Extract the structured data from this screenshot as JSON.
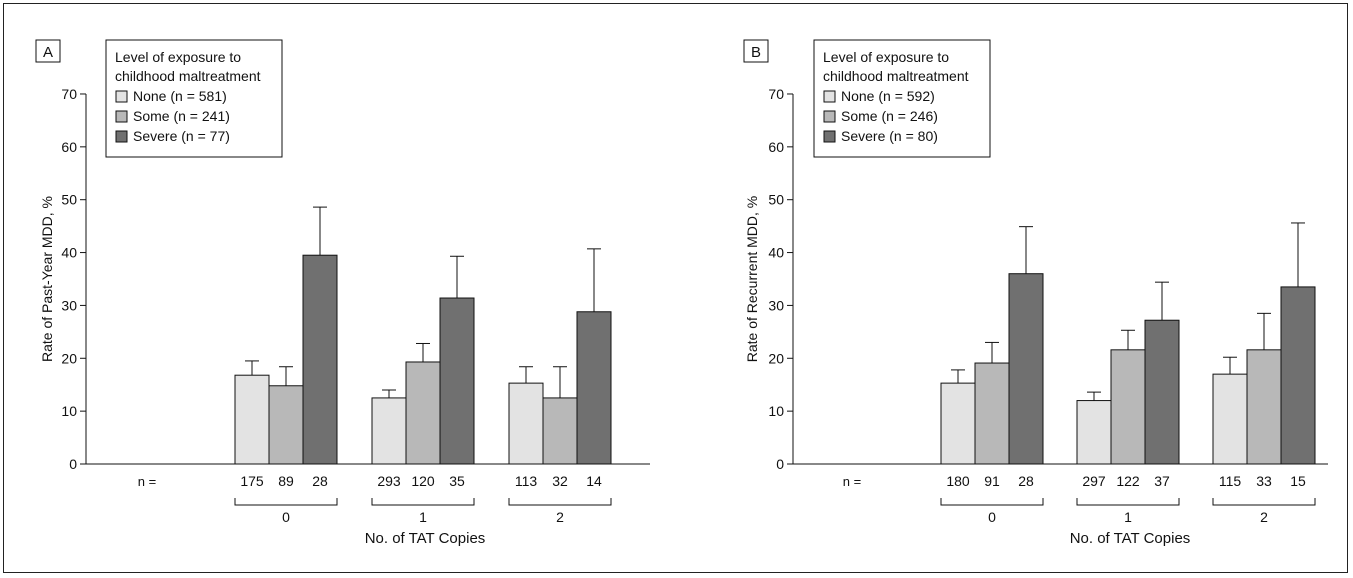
{
  "colors": {
    "none": "#e3e3e3",
    "some": "#b8b8b8",
    "severe": "#707070",
    "axis": "#111111"
  },
  "chart_data": [
    {
      "panel": "A",
      "type": "bar",
      "ylabel": "Rate of Past-Year MDD, %",
      "xlabel": "No. of TAT Copies",
      "ylim": [
        0,
        70
      ],
      "yticks": [
        0,
        10,
        20,
        30,
        40,
        50,
        60,
        70
      ],
      "n_label": "n =",
      "legend_title_1": "Level of exposure to",
      "legend_title_2": "childhood maltreatment",
      "legend_position": "top-left",
      "categories": [
        "0",
        "1",
        "2"
      ],
      "series": [
        {
          "name": "None (n = 581)",
          "key": "none",
          "values": [
            16.8,
            12.5,
            15.3
          ],
          "errors": [
            19.5,
            14.0,
            18.4
          ],
          "n": [
            "175",
            "293",
            "113"
          ]
        },
        {
          "name": "Some (n = 241)",
          "key": "some",
          "values": [
            14.8,
            19.3,
            12.5
          ],
          "errors": [
            18.4,
            22.8,
            18.4
          ],
          "n": [
            "89",
            "120",
            "32"
          ]
        },
        {
          "name": "Severe (n = 77)",
          "key": "severe",
          "values": [
            39.5,
            31.4,
            28.8
          ],
          "errors": [
            48.6,
            39.3,
            40.7
          ],
          "n": [
            "28",
            "35",
            "14"
          ]
        }
      ]
    },
    {
      "panel": "B",
      "type": "bar",
      "ylabel": "Rate of Recurrent MDD, %",
      "xlabel": "No. of TAT Copies",
      "ylim": [
        0,
        70
      ],
      "yticks": [
        0,
        10,
        20,
        30,
        40,
        50,
        60,
        70
      ],
      "n_label": "n =",
      "legend_title_1": "Level of exposure to",
      "legend_title_2": "childhood maltreatment",
      "legend_position": "top-left",
      "categories": [
        "0",
        "1",
        "2"
      ],
      "series": [
        {
          "name": "None (n = 592)",
          "key": "none",
          "values": [
            15.3,
            12.0,
            17.0
          ],
          "errors": [
            17.8,
            13.6,
            20.2
          ],
          "n": [
            "180",
            "297",
            "115"
          ]
        },
        {
          "name": "Some (n = 246)",
          "key": "some",
          "values": [
            19.1,
            21.6,
            21.6
          ],
          "errors": [
            23.0,
            25.3,
            28.5
          ],
          "n": [
            "91",
            "122",
            "33"
          ]
        },
        {
          "name": "Severe (n = 80)",
          "key": "severe",
          "values": [
            36.0,
            27.2,
            33.5
          ],
          "errors": [
            44.9,
            34.4,
            45.6
          ],
          "n": [
            "28",
            "37",
            "15"
          ]
        }
      ]
    }
  ]
}
